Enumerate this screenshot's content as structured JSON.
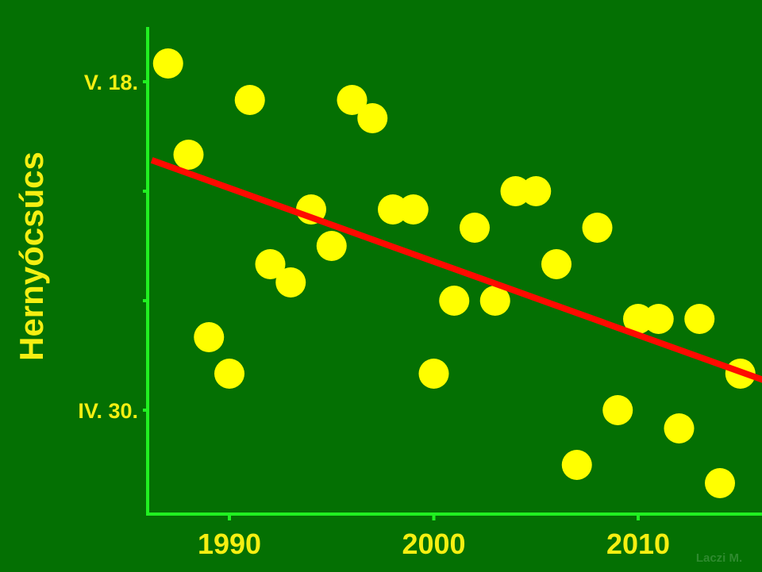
{
  "chart_data": {
    "type": "scatter",
    "title": "",
    "ylabel": "Hernyócsúcs",
    "xlabel": "",
    "xlim": [
      1986,
      2016.5
    ],
    "ylim": [
      -5,
      19
    ],
    "x_ticks": [
      1990,
      2000,
      2010
    ],
    "x_tick_labels": [
      "1990",
      "2000",
      "2010"
    ],
    "y_ticks": [
      0,
      6,
      12,
      18
    ],
    "y_tick_labels": [
      "IV. 30.",
      "",
      "",
      "V. 18."
    ],
    "y_unit_note": "y value = days after April 30",
    "points": [
      {
        "x": 1987,
        "y": 19.0
      },
      {
        "x": 1988,
        "y": 14.0
      },
      {
        "x": 1989,
        "y": 4.0
      },
      {
        "x": 1990,
        "y": 2.0
      },
      {
        "x": 1991,
        "y": 17.0
      },
      {
        "x": 1992,
        "y": 8.0
      },
      {
        "x": 1993,
        "y": 7.0
      },
      {
        "x": 1994,
        "y": 11.0
      },
      {
        "x": 1995,
        "y": 9.0
      },
      {
        "x": 1996,
        "y": 17.0
      },
      {
        "x": 1997,
        "y": 16.0
      },
      {
        "x": 1998,
        "y": 11.0
      },
      {
        "x": 1999,
        "y": 11.0
      },
      {
        "x": 2000,
        "y": 2.0
      },
      {
        "x": 2001,
        "y": 6.0
      },
      {
        "x": 2002,
        "y": 10.0
      },
      {
        "x": 2003,
        "y": 6.0
      },
      {
        "x": 2004,
        "y": 12.0
      },
      {
        "x": 2005,
        "y": 12.0
      },
      {
        "x": 2006,
        "y": 8.0
      },
      {
        "x": 2007,
        "y": -3.0
      },
      {
        "x": 2008,
        "y": 10.0
      },
      {
        "x": 2009,
        "y": 0.0
      },
      {
        "x": 2010,
        "y": 5.0
      },
      {
        "x": 2011,
        "y": 5.0
      },
      {
        "x": 2012,
        "y": -1.0
      },
      {
        "x": 2013,
        "y": 5.0
      },
      {
        "x": 2014,
        "y": -4.0
      },
      {
        "x": 2015,
        "y": 2.0
      }
    ],
    "trendline": {
      "x": [
        1986.2,
        2016.5
      ],
      "y": [
        13.7,
        1.5
      ]
    },
    "grid": false,
    "colors": {
      "background": "#047003",
      "axis": "#21f021",
      "points": "#ffff00",
      "trendline": "#ff0a00",
      "label": "#f5ef12",
      "credit": "#2f8a2f"
    }
  },
  "credit": "Laczi M."
}
